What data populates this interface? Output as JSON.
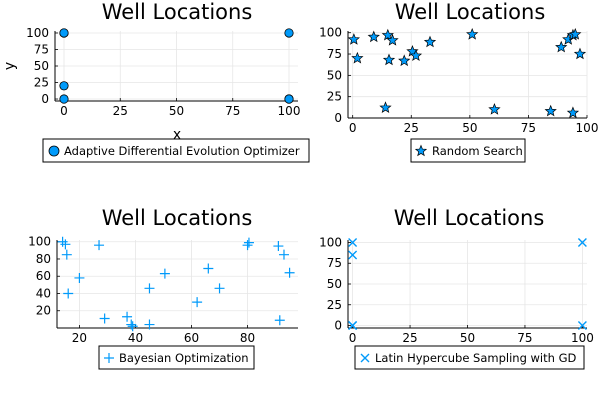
{
  "figure": {
    "colors": {
      "marker": "#009AFA",
      "edge": "#000000"
    }
  },
  "chart_data": [
    {
      "type": "scatter",
      "title": "Well Locations",
      "xlabel": "x",
      "ylabel": "y",
      "xlim": [
        -4,
        104
      ],
      "ylim": [
        -3,
        103
      ],
      "xticks": [
        0,
        25,
        50,
        75,
        100
      ],
      "yticks": [
        0,
        25,
        50,
        75,
        100
      ],
      "grid": true,
      "legend_position": "bottom",
      "series": [
        {
          "name": "Adaptive Differential Evolution Optimizer",
          "marker": "circle",
          "x": [
            0,
            0,
            0,
            0,
            100,
            100,
            100
          ],
          "y": [
            100,
            100,
            20,
            0,
            100,
            0,
            0
          ]
        }
      ]
    },
    {
      "type": "scatter",
      "title": "Well Locations",
      "xlabel": "",
      "ylabel": "",
      "xlim": [
        -2,
        100
      ],
      "ylim": [
        0,
        102
      ],
      "xticks": [
        0,
        25,
        50,
        75,
        100
      ],
      "yticks": [
        0,
        25,
        50,
        75,
        100
      ],
      "grid": true,
      "legend_position": "bottom",
      "series": [
        {
          "name": "Random Search",
          "marker": "star",
          "x": [
            0.5,
            2,
            9,
            14,
            15,
            17,
            15.5,
            22,
            25.5,
            27,
            33,
            51,
            60.5,
            84.5,
            89,
            92,
            94,
            95,
            97,
            94
          ],
          "y": [
            92,
            70,
            95,
            12,
            97,
            91,
            68,
            67,
            78,
            73,
            89,
            98,
            10,
            8,
            83,
            92,
            97,
            98,
            75,
            6
          ]
        }
      ]
    },
    {
      "type": "scatter",
      "title": "Well Locations",
      "xlabel": "",
      "ylabel": "",
      "xlim": [
        12,
        98
      ],
      "ylim": [
        0,
        102
      ],
      "xticks": [
        20,
        40,
        60,
        80
      ],
      "yticks": [
        20,
        40,
        60,
        80,
        100
      ],
      "grid": true,
      "legend_position": "bottom",
      "series": [
        {
          "name": "Bayesian Optimization",
          "marker": "plus",
          "x": [
            14,
            15,
            15.5,
            16,
            20,
            27,
            29,
            37,
            38.5,
            39,
            45,
            45,
            50.5,
            62,
            66,
            70,
            80,
            80.5,
            91,
            91.5,
            93,
            95
          ],
          "y": [
            100,
            97,
            85,
            40,
            58,
            96,
            11,
            13,
            4,
            2,
            46,
            4,
            63,
            30,
            69,
            46,
            96,
            99,
            95,
            9,
            85,
            64
          ]
        }
      ]
    },
    {
      "type": "scatter",
      "title": "Well Locations",
      "xlabel": "",
      "ylabel": "",
      "xlim": [
        -2,
        102
      ],
      "ylim": [
        -3,
        103
      ],
      "xticks": [
        0,
        25,
        50,
        75,
        100
      ],
      "yticks": [
        0,
        25,
        50,
        75,
        100
      ],
      "grid": true,
      "legend_position": "bottom",
      "series": [
        {
          "name": "Latin Hypercube Sampling with GD",
          "marker": "cross",
          "x": [
            0,
            0,
            0,
            0,
            100,
            100
          ],
          "y": [
            100,
            85,
            0,
            0,
            100,
            0
          ]
        }
      ]
    }
  ]
}
